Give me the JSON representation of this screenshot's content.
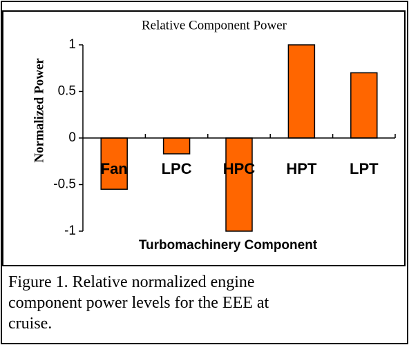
{
  "chart_data": {
    "type": "bar",
    "title": "Relative Component Power",
    "y_label": "Normalized Power",
    "x_label": "Turbomachinery Component",
    "categories": [
      "Fan",
      "LPC",
      "HPC",
      "HPT",
      "LPT"
    ],
    "values": [
      -0.55,
      -0.17,
      -1,
      1,
      0.7
    ],
    "color": "#ff6600",
    "ylim": [
      -1,
      1
    ],
    "yticks": [
      -1,
      -0.5,
      0,
      0.5,
      1
    ],
    "grid": false
  },
  "caption": [
    "Figure 1. Relative normalized engine",
    "component power levels for the EEE at",
    "cruise."
  ]
}
